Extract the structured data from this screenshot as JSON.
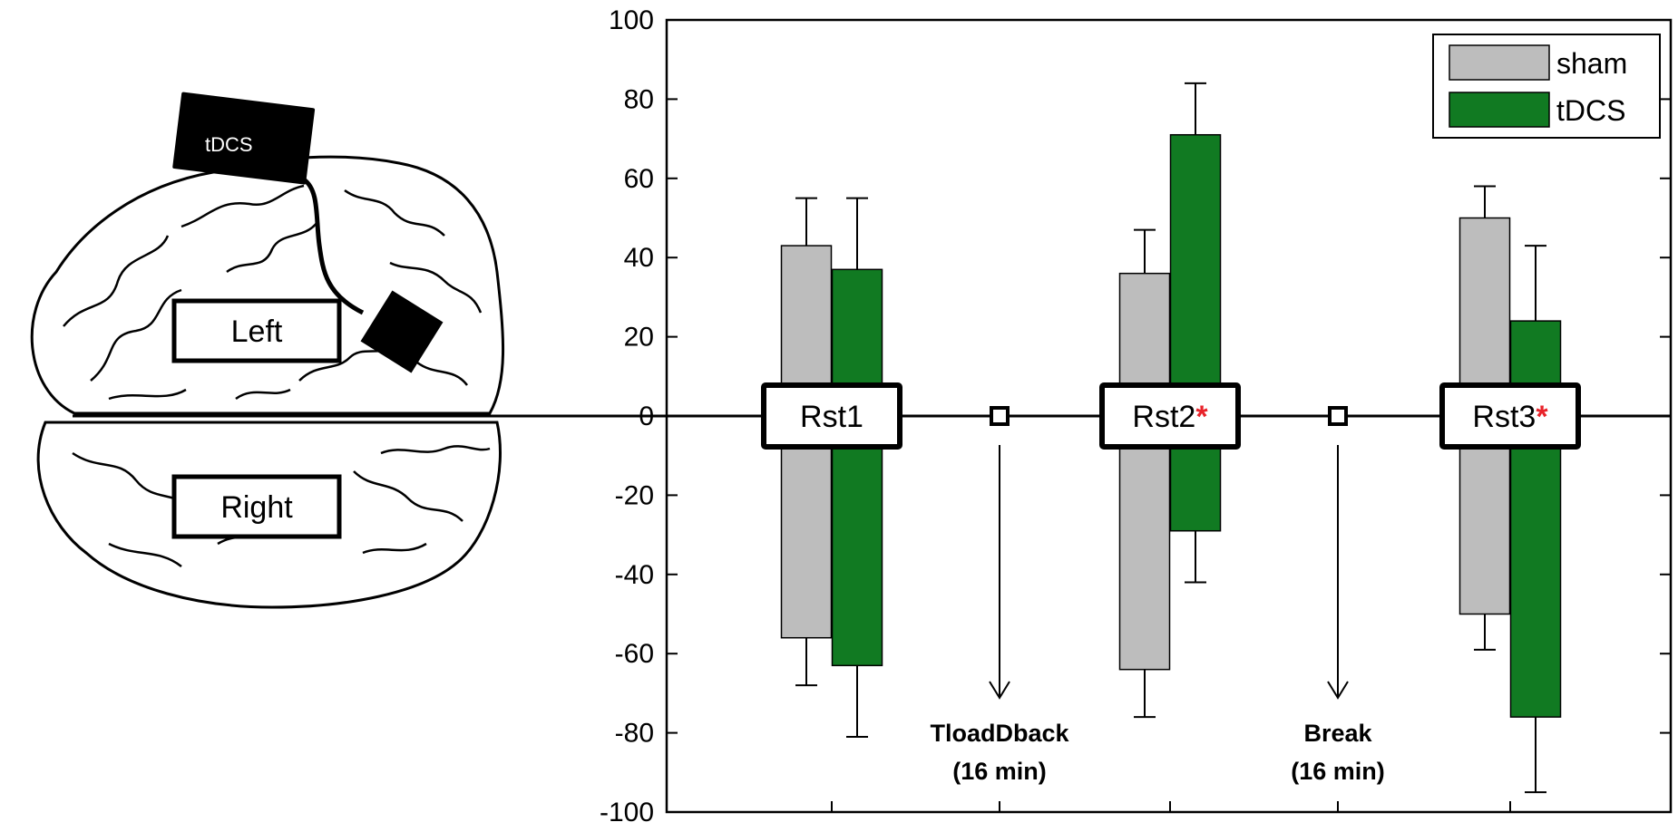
{
  "colors": {
    "sham": "#bdbdbd",
    "tdcs": "#117a22",
    "significance": "#e8232a",
    "axis": "#000000"
  },
  "brain": {
    "device_label": "tDCS",
    "left_label": "Left",
    "right_label": "Right",
    "icons": [
      "brain-outline-icon",
      "electrode-icon",
      "stimulator-icon"
    ]
  },
  "chart_data": {
    "type": "bar",
    "categories": [
      "Rst1",
      "Rst2",
      "Rst3"
    ],
    "ylim": [
      -100,
      100
    ],
    "yticks": [
      100,
      80,
      60,
      40,
      20,
      0,
      -20,
      -40,
      -60,
      -80,
      -100
    ],
    "ytick_labels": [
      "100",
      "80",
      "60",
      "40",
      "20",
      "0",
      "-20",
      "-40",
      "-60",
      "-80",
      "-100"
    ],
    "legend": {
      "position": "top-right",
      "entries": [
        "sham",
        "tDCS"
      ]
    },
    "series": [
      {
        "name": "sham",
        "positive": [
          43,
          36,
          50
        ],
        "positive_error": [
          12,
          11,
          8
        ],
        "negative": [
          -56,
          -64,
          -50
        ],
        "negative_error": [
          12,
          12,
          9
        ]
      },
      {
        "name": "tDCS",
        "positive": [
          37,
          71,
          24
        ],
        "positive_error": [
          18,
          13,
          19
        ],
        "negative": [
          -63,
          -29,
          -76
        ],
        "negative_error": [
          18,
          13,
          19
        ]
      }
    ],
    "boxes": [
      {
        "label": "Rst1",
        "significant": false
      },
      {
        "label": "Rst2",
        "significant": true
      },
      {
        "label": "Rst3",
        "significant": true
      }
    ],
    "significance_mark": "*",
    "intervals": [
      {
        "line1": "TloadDback",
        "line2": "(16 min)"
      },
      {
        "line1": "Break",
        "line2": "(16 min)"
      }
    ],
    "grid": false
  }
}
